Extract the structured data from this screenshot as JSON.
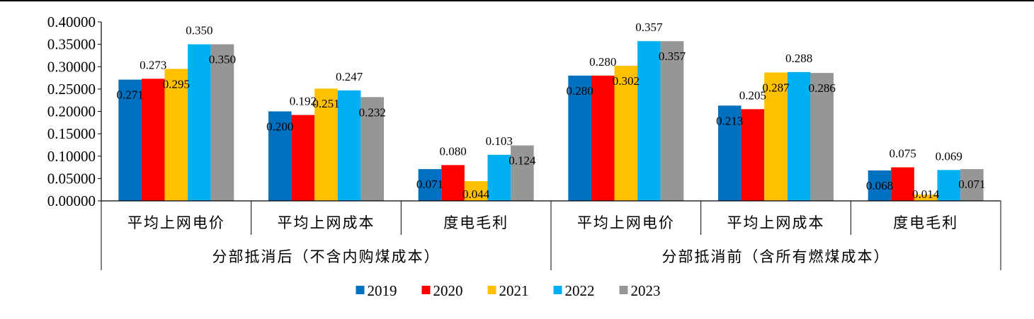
{
  "chart_data": {
    "type": "bar",
    "title": "",
    "xlabel": "",
    "ylabel": "",
    "ylim": [
      0,
      0.4
    ],
    "yticks": [
      "0.00000",
      "0.05000",
      "0.10000",
      "0.15000",
      "0.20000",
      "0.25000",
      "0.30000",
      "0.35000",
      "0.40000"
    ],
    "grid": false,
    "legend_position": "bottom",
    "groups": [
      {
        "label": "分部抵消后（不含内购煤成本）",
        "categories": [
          "平均上网电价",
          "平均上网成本",
          "度电毛利"
        ]
      },
      {
        "label": "分部抵消前（含所有燃煤成本）",
        "categories": [
          "平均上网电价",
          "平均上网成本",
          "度电毛利"
        ]
      }
    ],
    "categories": [
      "平均上网电价",
      "平均上网成本",
      "度电毛利",
      "平均上网电价",
      "平均上网成本",
      "度电毛利"
    ],
    "series": [
      {
        "name": "2019",
        "color": "#0070c0",
        "values": [
          0.271,
          0.2,
          0.071,
          0.28,
          0.213,
          0.068
        ],
        "labels": [
          "0.271",
          "0.200",
          "0.071",
          "0.280",
          "0.213",
          "0.068"
        ]
      },
      {
        "name": "2020",
        "color": "#ff0000",
        "values": [
          0.273,
          0.192,
          0.08,
          0.28,
          0.205,
          0.075
        ],
        "labels": [
          "0.273",
          "0.192",
          "0.080",
          "0.280",
          "0.205",
          "0.075"
        ]
      },
      {
        "name": "2021",
        "color": "#ffc000",
        "values": [
          0.295,
          0.251,
          0.044,
          0.302,
          0.287,
          0.014
        ],
        "labels": [
          "0.295",
          "0.251",
          "0.044",
          "0.302",
          "0.287",
          "0.014"
        ]
      },
      {
        "name": "2022",
        "color": "#00b0f0",
        "values": [
          0.35,
          0.247,
          0.103,
          0.357,
          0.288,
          0.069
        ],
        "labels": [
          "0.350",
          "0.247",
          "0.103",
          "0.357",
          "0.288",
          "0.069"
        ]
      },
      {
        "name": "2023",
        "color": "#969696",
        "values": [
          0.35,
          0.232,
          0.124,
          0.357,
          0.286,
          0.071
        ],
        "labels": [
          "0.350",
          "0.232",
          "0.124",
          "0.357",
          "0.286",
          "0.071"
        ]
      }
    ]
  }
}
